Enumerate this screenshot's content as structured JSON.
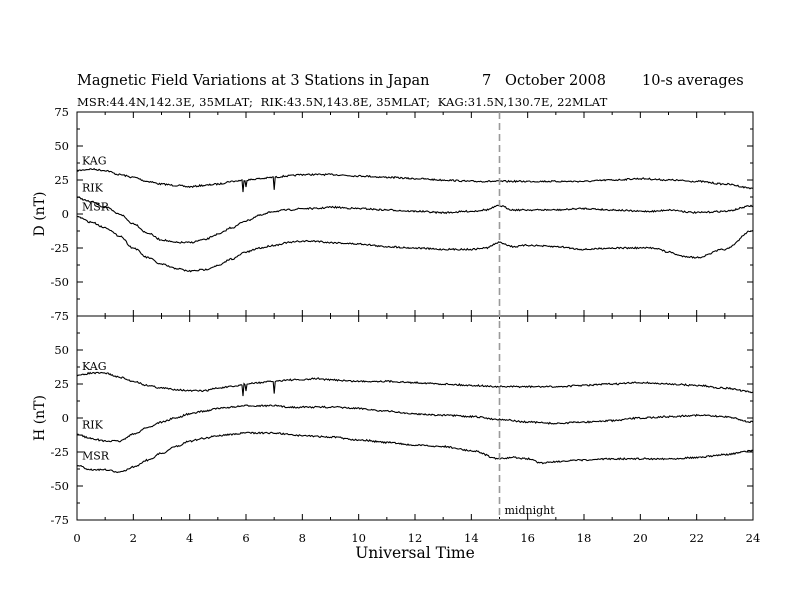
{
  "header": {
    "title": "Magnetic Field Variations at 3 Stations in Japan",
    "date": "7   October 2008",
    "averaging": "10-s averages",
    "stations_line": "MSR:44.4N,142.3E, 35MLAT;  RIK:43.5N,143.8E, 35MLAT;  KAG:31.5N,130.7E, 22MLAT"
  },
  "chart_data": {
    "type": "line",
    "xlabel": "Universal Time",
    "xlim": [
      0,
      24
    ],
    "x_ticks": [
      "0",
      "2",
      "4",
      "6",
      "8",
      "10",
      "12",
      "14",
      "16",
      "18",
      "20",
      "22",
      "24"
    ],
    "annotation": {
      "x": 15,
      "label": "midnight",
      "style": "dashed vertical line"
    },
    "panels": [
      {
        "id": "D",
        "ylabel": "D (nT)",
        "ylim": [
          -75,
          75
        ],
        "y_ticks": [
          "75",
          "50",
          "25",
          "0",
          "-25",
          "-50",
          "-75"
        ],
        "series": [
          {
            "name": "KAG",
            "x": [
              0,
              0.5,
              1,
              1.5,
              2,
              2.5,
              3,
              3.5,
              4,
              4.5,
              5,
              5.5,
              6,
              6.5,
              7,
              7.5,
              8,
              8.5,
              9,
              10,
              11,
              12,
              13,
              14,
              15,
              15.5,
              16,
              17,
              18,
              19,
              20,
              21,
              22,
              23,
              24
            ],
            "y": [
              32,
              33,
              32,
              29,
              27,
              24,
              22,
              21,
              20,
              21,
              22,
              24,
              25,
              26,
              27,
              28,
              29,
              29,
              29,
              28,
              27,
              26,
              25,
              24,
              24,
              24,
              24,
              24,
              24,
              25,
              26,
              25,
              24,
              22,
              19
            ]
          },
          {
            "name": "RIK",
            "x": [
              0,
              0.5,
              1,
              1.5,
              2,
              2.5,
              3,
              3.5,
              4,
              4.5,
              5,
              5.5,
              6,
              6.5,
              7,
              7.5,
              8,
              8.5,
              9,
              10,
              11,
              12,
              13,
              14,
              14.5,
              15,
              15.5,
              16,
              17,
              18,
              19,
              20,
              20.5,
              21,
              22,
              23,
              24
            ],
            "y": [
              12,
              9,
              5,
              0,
              -7,
              -14,
              -19,
              -21,
              -21,
              -19,
              -15,
              -10,
              -5,
              -1,
              2,
              3,
              4,
              4,
              5,
              4,
              3,
              2,
              1,
              2,
              3,
              6,
              3,
              3,
              3,
              4,
              3,
              2,
              2,
              3,
              1,
              2,
              6
            ]
          },
          {
            "name": "MSR",
            "x": [
              0,
              0.5,
              1,
              1.5,
              2,
              2.5,
              3,
              3.5,
              4,
              4.5,
              5,
              5.5,
              6,
              6.5,
              7,
              7.5,
              8,
              8.5,
              9,
              10,
              11,
              12,
              13,
              14,
              14.5,
              15,
              15.5,
              16,
              17,
              18,
              19,
              20,
              20.5,
              21,
              21.5,
              22,
              23,
              24
            ],
            "y": [
              -2,
              -6,
              -10,
              -16,
              -25,
              -32,
              -37,
              -40,
              -42,
              -41,
              -38,
              -33,
              -28,
              -25,
              -23,
              -21,
              -20,
              -20,
              -21,
              -22,
              -24,
              -25,
              -26,
              -26,
              -25,
              -21,
              -24,
              -23,
              -24,
              -26,
              -25,
              -25,
              -25,
              -28,
              -31,
              -32,
              -26,
              -12
            ]
          }
        ]
      },
      {
        "id": "H",
        "ylabel": "H (nT)",
        "ylim": [
          -75,
          75
        ],
        "y_ticks": [
          "75",
          "50",
          "25",
          "0",
          "-25",
          "-50",
          "-75"
        ],
        "series": [
          {
            "name": "KAG",
            "x": [
              0,
              0.5,
              1,
              1.5,
              2,
              2.5,
              3,
              3.5,
              4,
              4.5,
              5,
              5.5,
              6,
              6.5,
              7,
              7.5,
              8,
              8.5,
              9,
              10,
              11,
              12,
              13,
              14,
              15,
              16,
              17,
              18,
              19,
              20,
              21,
              22,
              23,
              24
            ],
            "y": [
              31,
              33,
              33,
              30,
              27,
              24,
              22,
              21,
              20,
              20,
              22,
              23,
              25,
              26,
              27,
              28,
              28,
              29,
              28,
              27,
              27,
              26,
              25,
              24,
              23,
              23,
              23,
              24,
              25,
              26,
              25,
              24,
              22,
              19
            ]
          },
          {
            "name": "RIK",
            "x": [
              0,
              0.5,
              1,
              1.5,
              2,
              2.5,
              3,
              3.5,
              4,
              4.5,
              5,
              5.5,
              6,
              6.5,
              7,
              7.5,
              8,
              9,
              10,
              11,
              12,
              13,
              14,
              15,
              16,
              17,
              18,
              19,
              20,
              21,
              22,
              23,
              24
            ],
            "y": [
              -12,
              -15,
              -17,
              -17,
              -12,
              -7,
              -3,
              0,
              3,
              5,
              7,
              8,
              9,
              9,
              9,
              8,
              8,
              8,
              7,
              5,
              3,
              2,
              1,
              -1,
              -3,
              -4,
              -3,
              -2,
              0,
              1,
              2,
              1,
              -3
            ]
          },
          {
            "name": "MSR",
            "x": [
              0,
              0.5,
              1,
              1.5,
              2,
              2.5,
              3,
              3.5,
              4,
              4.5,
              5,
              5.5,
              6,
              6.5,
              7,
              7.5,
              8,
              9,
              10,
              11,
              12,
              13,
              14,
              15,
              15.5,
              16,
              16.5,
              17,
              18,
              19,
              20,
              21,
              22,
              23,
              24
            ],
            "y": [
              -35,
              -38,
              -38,
              -40,
              -36,
              -31,
              -26,
              -21,
              -17,
              -15,
              -13,
              -12,
              -11,
              -11,
              -11,
              -12,
              -13,
              -14,
              -16,
              -18,
              -20,
              -21,
              -24,
              -30,
              -29,
              -30,
              -33,
              -32,
              -31,
              -30,
              -30,
              -30,
              -29,
              -27,
              -24
            ]
          }
        ]
      }
    ]
  }
}
